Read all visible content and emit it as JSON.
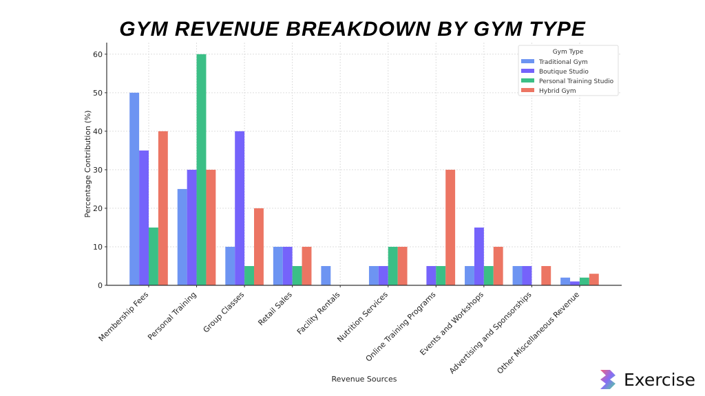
{
  "chart_data": {
    "type": "bar",
    "title": "GYM REVENUE BREAKDOWN BY GYM TYPE",
    "xlabel": "Revenue Sources",
    "ylabel": "Percentage Contribution (%)",
    "ylim": [
      0,
      63
    ],
    "yticks": [
      0,
      10,
      20,
      30,
      40,
      50,
      60
    ],
    "grid": true,
    "legend": {
      "title": "Gym Type",
      "placement": "top-right"
    },
    "categories": [
      "Membership Fees",
      "Personal Training",
      "Group Classes",
      "Retail Sales",
      "Facility Rentals",
      "Nutrition Services",
      "Online Training Programs",
      "Events and Workshops",
      "Advertising and Sponsorships",
      "Other Miscellaneous Revenue"
    ],
    "series": [
      {
        "name": "Traditional Gym",
        "color": "#6d94f2",
        "values": [
          50,
          25,
          10,
          10,
          5,
          5,
          0,
          5,
          5,
          2
        ]
      },
      {
        "name": "Boutique Studio",
        "color": "#7563fb",
        "values": [
          35,
          30,
          40,
          10,
          0,
          5,
          5,
          15,
          5,
          1
        ]
      },
      {
        "name": "Personal Training Studio",
        "color": "#3bbf86",
        "values": [
          15,
          60,
          5,
          5,
          0,
          10,
          5,
          5,
          0,
          2
        ]
      },
      {
        "name": "Hybrid Gym",
        "color": "#ec7563",
        "values": [
          40,
          30,
          20,
          10,
          0,
          10,
          30,
          10,
          5,
          3
        ]
      }
    ]
  },
  "brand": {
    "name": "Exercise"
  }
}
